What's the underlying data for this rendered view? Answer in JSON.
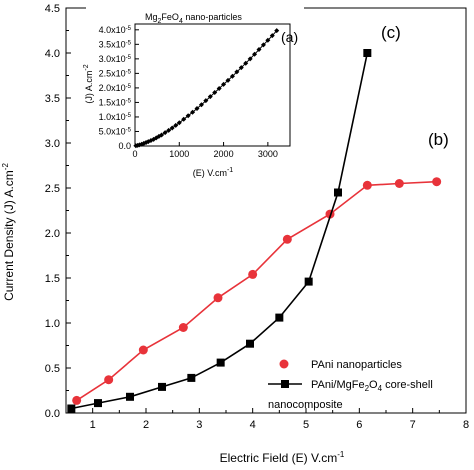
{
  "chart_data": [
    {
      "type": "line",
      "xlabel": "Electric Field",
      "xlabel_qty": "(E)",
      "xlabel_unit": "V.cm",
      "xlabel_sup": "-1",
      "ylabel": "Current Density",
      "ylabel_qty": "(J)",
      "ylabel_unit": "A.cm",
      "ylabel_sup": "-2",
      "xlim": [
        0.5,
        8
      ],
      "ylim": [
        0,
        4.5
      ],
      "xticks": [
        "1",
        "2",
        "3",
        "4",
        "5",
        "6",
        "7",
        "8"
      ],
      "yticks": [
        "0.0",
        "0.5",
        "1.0",
        "1.5",
        "2.0",
        "2.5",
        "3.0",
        "3.5",
        "4.0",
        "4.5"
      ],
      "panel_labels": {
        "b": "(b)",
        "c": "(c)"
      },
      "legend_position": "bottom-right",
      "series": [
        {
          "name": "PAni nanoparticles",
          "color": "#e8333a",
          "marker": "circle",
          "x": [
            0.7,
            1.3,
            1.95,
            2.7,
            3.35,
            4.0,
            4.65,
            5.45,
            6.15,
            6.75,
            7.45
          ],
          "y": [
            0.14,
            0.37,
            0.7,
            0.95,
            1.28,
            1.54,
            1.93,
            2.21,
            2.53,
            2.55,
            2.57
          ]
        },
        {
          "name": "PAni/MgFe",
          "name_sub": "2",
          "name_rest": "O",
          "name_sub2": "4",
          "name_tail": " core-shell",
          "name_line2": "nanocomposite",
          "color": "#000000",
          "marker": "square",
          "x": [
            0.6,
            1.1,
            1.7,
            2.3,
            2.85,
            3.4,
            3.95,
            4.5,
            5.05,
            5.6,
            6.15
          ],
          "y": [
            0.05,
            0.11,
            0.18,
            0.29,
            0.39,
            0.56,
            0.77,
            1.06,
            1.46,
            2.45,
            4.0
          ]
        }
      ]
    },
    {
      "type": "line",
      "title": "Mg",
      "title_sub": "2",
      "title_rest": "FeO",
      "title_sub2": "4",
      "title_tail": " nano-particles",
      "panel_label": "(a)",
      "xlabel": "(E)  V.cm",
      "xlabel_sup": "-1",
      "ylabel": "(J)  A.cm",
      "ylabel_sup": "-2",
      "xlim": [
        0,
        3500
      ],
      "ylim": [
        0,
        4.2e-05
      ],
      "xticks": [
        "0",
        "1000",
        "2000",
        "3000"
      ],
      "yticks": [
        "0.0",
        "5.0x10",
        "1.0x10",
        "1.5x10",
        "2.0x10",
        "2.5x10",
        "3.0x10",
        "3.5x10",
        "4.0x10"
      ],
      "ytick_exp": "-5",
      "series": [
        {
          "color": "#000000",
          "marker": "diamond",
          "x": [
            20,
            60,
            100,
            150,
            200,
            250,
            300,
            360,
            420,
            480,
            540,
            600,
            680,
            760,
            840,
            920,
            1000,
            1100,
            1200,
            1300,
            1400,
            1500,
            1600,
            1700,
            1800,
            1900,
            2000,
            2100,
            2200,
            2300,
            2400,
            2500,
            2600,
            2700,
            2800,
            2900,
            3000,
            3100,
            3200
          ],
          "y": [
            1e-07,
            2e-07,
            4e-07,
            6e-07,
            9e-07,
            1.2e-06,
            1.5e-06,
            1.9e-06,
            2.3e-06,
            2.8e-06,
            3.3e-06,
            3.8e-06,
            4.6e-06,
            5.4e-06,
            6.2e-06,
            7.1e-06,
            8e-06,
            9.2e-06,
            1.04e-05,
            1.16e-05,
            1.29e-05,
            1.42e-05,
            1.56e-05,
            1.7e-05,
            1.84e-05,
            1.98e-05,
            2.12e-05,
            2.26e-05,
            2.4e-05,
            2.55e-05,
            2.7e-05,
            2.85e-05,
            3e-05,
            3.16e-05,
            3.32e-05,
            3.48e-05,
            3.64e-05,
            3.8e-05,
            3.97e-05
          ]
        }
      ]
    }
  ]
}
